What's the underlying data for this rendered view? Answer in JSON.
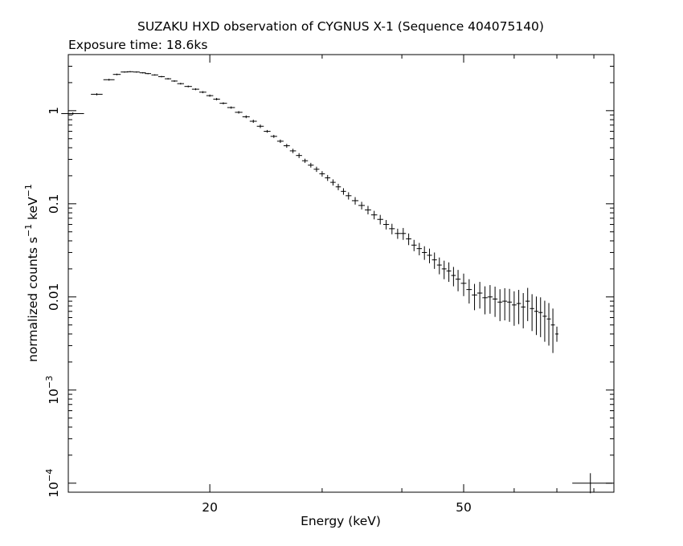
{
  "chart_data": {
    "type": "scatter",
    "title": "SUZAKU HXD observation of CYGNUS X-1 (Sequence 404075140)",
    "subtitle": "Exposure time: 18.6ks",
    "xlabel": "Energy (keV)",
    "ylabel_main": "normalized counts s",
    "ylabel_sup1": "−1",
    "ylabel_mid": " keV",
    "ylabel_sup2": "−1",
    "x_scale": "log",
    "y_scale": "log",
    "xlim": [
      12,
      86
    ],
    "ylim": [
      8e-05,
      4
    ],
    "x_ticks": [
      {
        "value": 20,
        "label": "20"
      },
      {
        "value": 50,
        "label": "50"
      }
    ],
    "y_ticks": [
      {
        "value": 1,
        "base": "1",
        "exp": ""
      },
      {
        "value": 0.1,
        "base": "0.1",
        "exp": ""
      },
      {
        "value": 0.01,
        "base": "0.01",
        "exp": ""
      },
      {
        "value": 0.001,
        "base": "10",
        "exp": "−3"
      },
      {
        "value": 0.0001,
        "base": "10",
        "exp": "−4"
      }
    ],
    "grid": false,
    "legend": "none",
    "series": [
      {
        "x": [
          12.2,
          13.3,
          13.9,
          14.3,
          14.7,
          15.0,
          15.35,
          15.7,
          16.0,
          16.4,
          16.8,
          17.2,
          17.6,
          18.0,
          18.5,
          19.0,
          19.5,
          20.0,
          20.5,
          21.0,
          21.6,
          22.2,
          22.8,
          23.4,
          24.0,
          24.6,
          25.2,
          25.8,
          26.4,
          27.0,
          27.6,
          28.2,
          28.8,
          29.4,
          30.0,
          30.6,
          31.2,
          31.8,
          32.4,
          33.0,
          33.8,
          34.6,
          35.4,
          36.2,
          37.0,
          37.8,
          38.6,
          39.4,
          40.2,
          41.0,
          41.8,
          42.6,
          43.4,
          44.2,
          45.0,
          45.8,
          46.6,
          47.4,
          48.2,
          49.0,
          50.0,
          51.0,
          52.0,
          53.0,
          54.0,
          55.0,
          56.0,
          57.0,
          58.0,
          59.0,
          60.0,
          61.0,
          62.0,
          63.0,
          64.0,
          65.0,
          66.0,
          67.0,
          68.0,
          69.0,
          70.0
        ],
        "y": [
          0.93,
          1.5,
          2.15,
          2.45,
          2.6,
          2.62,
          2.6,
          2.55,
          2.5,
          2.42,
          2.32,
          2.2,
          2.08,
          1.95,
          1.82,
          1.7,
          1.58,
          1.45,
          1.33,
          1.2,
          1.08,
          0.96,
          0.86,
          0.77,
          0.68,
          0.6,
          0.53,
          0.47,
          0.42,
          0.37,
          0.33,
          0.29,
          0.26,
          0.235,
          0.21,
          0.19,
          0.17,
          0.152,
          0.136,
          0.122,
          0.108,
          0.096,
          0.086,
          0.076,
          0.068,
          0.06,
          0.054,
          0.048,
          0.048,
          0.042,
          0.036,
          0.033,
          0.03,
          0.028,
          0.025,
          0.022,
          0.02,
          0.019,
          0.017,
          0.0155,
          0.014,
          0.012,
          0.0105,
          0.011,
          0.0098,
          0.01,
          0.0095,
          0.0088,
          0.009,
          0.0088,
          0.0082,
          0.0085,
          0.0078,
          0.009,
          0.0075,
          0.007,
          0.0068,
          0.0062,
          0.0058,
          0.005,
          0.004
        ],
        "y_lo": [
          0.9,
          1.46,
          2.1,
          2.4,
          2.56,
          2.58,
          2.56,
          2.51,
          2.46,
          2.38,
          2.28,
          2.16,
          2.04,
          1.91,
          1.78,
          1.66,
          1.54,
          1.41,
          1.29,
          1.17,
          1.05,
          0.93,
          0.83,
          0.74,
          0.65,
          0.58,
          0.51,
          0.45,
          0.4,
          0.35,
          0.31,
          0.275,
          0.245,
          0.22,
          0.196,
          0.176,
          0.157,
          0.14,
          0.125,
          0.111,
          0.098,
          0.087,
          0.077,
          0.068,
          0.06,
          0.053,
          0.047,
          0.042,
          0.041,
          0.036,
          0.031,
          0.028,
          0.025,
          0.023,
          0.02,
          0.0175,
          0.0155,
          0.0145,
          0.013,
          0.0115,
          0.0102,
          0.0085,
          0.0072,
          0.0075,
          0.0065,
          0.0066,
          0.0061,
          0.0055,
          0.0056,
          0.0054,
          0.0049,
          0.0051,
          0.0046,
          0.0055,
          0.0043,
          0.0039,
          0.0037,
          0.0033,
          0.003,
          0.0025,
          0.0033
        ],
        "y_hi": [
          0.96,
          1.54,
          2.2,
          2.5,
          2.64,
          2.66,
          2.64,
          2.59,
          2.54,
          2.46,
          2.36,
          2.24,
          2.12,
          1.99,
          1.86,
          1.74,
          1.62,
          1.49,
          1.37,
          1.23,
          1.11,
          0.99,
          0.89,
          0.8,
          0.71,
          0.62,
          0.55,
          0.49,
          0.44,
          0.39,
          0.35,
          0.305,
          0.275,
          0.25,
          0.224,
          0.204,
          0.183,
          0.164,
          0.147,
          0.133,
          0.118,
          0.105,
          0.095,
          0.084,
          0.076,
          0.067,
          0.061,
          0.054,
          0.055,
          0.048,
          0.041,
          0.038,
          0.035,
          0.033,
          0.03,
          0.0265,
          0.0245,
          0.0235,
          0.021,
          0.0195,
          0.0178,
          0.0155,
          0.0138,
          0.0145,
          0.013,
          0.0134,
          0.0129,
          0.0121,
          0.0124,
          0.0122,
          0.0115,
          0.0119,
          0.011,
          0.0125,
          0.0107,
          0.0101,
          0.0099,
          0.0091,
          0.0086,
          0.0075,
          0.0048
        ],
        "x_halfwidth": [
          0.5,
          0.28,
          0.28,
          0.2,
          0.2,
          0.18,
          0.18,
          0.18,
          0.18,
          0.2,
          0.2,
          0.2,
          0.2,
          0.22,
          0.25,
          0.25,
          0.25,
          0.25,
          0.25,
          0.28,
          0.3,
          0.3,
          0.3,
          0.3,
          0.3,
          0.3,
          0.3,
          0.3,
          0.3,
          0.3,
          0.3,
          0.3,
          0.3,
          0.3,
          0.3,
          0.3,
          0.3,
          0.3,
          0.3,
          0.35,
          0.4,
          0.4,
          0.4,
          0.4,
          0.4,
          0.4,
          0.4,
          0.4,
          0.4,
          0.4,
          0.4,
          0.4,
          0.4,
          0.4,
          0.4,
          0.4,
          0.4,
          0.4,
          0.4,
          0.45,
          0.5,
          0.5,
          0.5,
          0.5,
          0.5,
          0.5,
          0.5,
          0.5,
          0.5,
          0.5,
          0.5,
          0.5,
          0.5,
          0.5,
          0.5,
          0.5,
          0.5,
          0.5,
          0.5,
          0.5,
          0.4
        ]
      }
    ],
    "extra_point": {
      "x": 79,
      "x_lo": 74,
      "x_hi": 85.5,
      "y": 0.0001,
      "y_lo": 7.8e-05,
      "y_hi": 0.000128
    }
  }
}
